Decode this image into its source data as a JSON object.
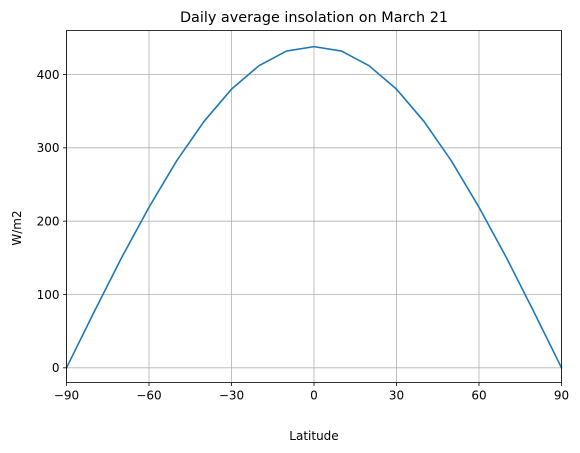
{
  "chart_data": {
    "type": "line",
    "title": "Daily average insolation on March 21",
    "xlabel": "Latitude",
    "ylabel": "W/m2",
    "xlim": [
      -90,
      90
    ],
    "ylim": [
      -20,
      460
    ],
    "xticks": [
      -90,
      -60,
      -30,
      0,
      30,
      60,
      90
    ],
    "yticks": [
      0,
      100,
      200,
      300,
      400
    ],
    "grid": true,
    "series": [
      {
        "color": "#1f77b4",
        "x": [
          -90,
          -80,
          -70,
          -60,
          -50,
          -40,
          -30,
          -20,
          -10,
          0,
          10,
          20,
          30,
          40,
          50,
          60,
          70,
          80,
          90
        ],
        "y": [
          0,
          76,
          150,
          219,
          282,
          336,
          380,
          412,
          432,
          438,
          432,
          412,
          380,
          336,
          282,
          219,
          150,
          76,
          0
        ]
      }
    ]
  }
}
